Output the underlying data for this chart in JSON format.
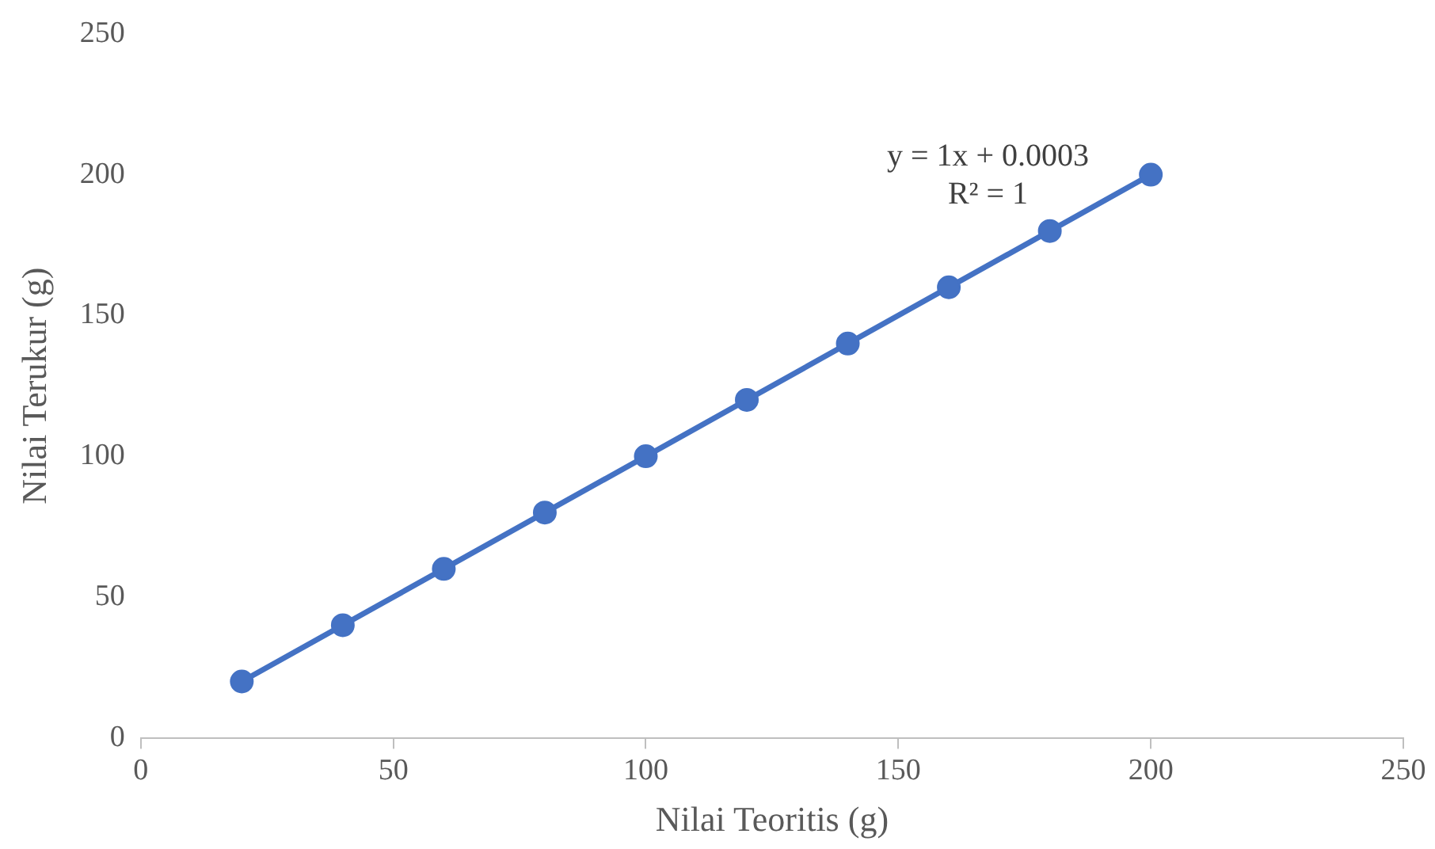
{
  "chart_data": {
    "type": "scatter",
    "xlabel": "Nilai Teoritis (g)",
    "ylabel": "Nilai Terukur (g)",
    "xlim": [
      0,
      250
    ],
    "xticks": [
      0,
      50,
      100,
      150,
      200,
      250
    ],
    "ylim": [
      0,
      250
    ],
    "yticks": [
      0,
      50,
      100,
      150,
      200,
      250
    ],
    "legend": false,
    "grid": false,
    "series": [
      {
        "color": "#4472c4",
        "marker": "circle",
        "x": [
          20,
          40,
          60,
          80,
          100,
          120,
          140,
          160,
          180,
          200
        ],
        "values": [
          20,
          40,
          60,
          80,
          100,
          120,
          140,
          160,
          180,
          200
        ]
      },
      {
        "type": "line",
        "color": "#4472c4",
        "marker": "none",
        "line_style": "solid",
        "x": [
          20,
          200
        ],
        "values": [
          20,
          200
        ]
      }
    ],
    "annotations": [
      "y = 1x + 0.0003",
      "R² = 1"
    ]
  }
}
